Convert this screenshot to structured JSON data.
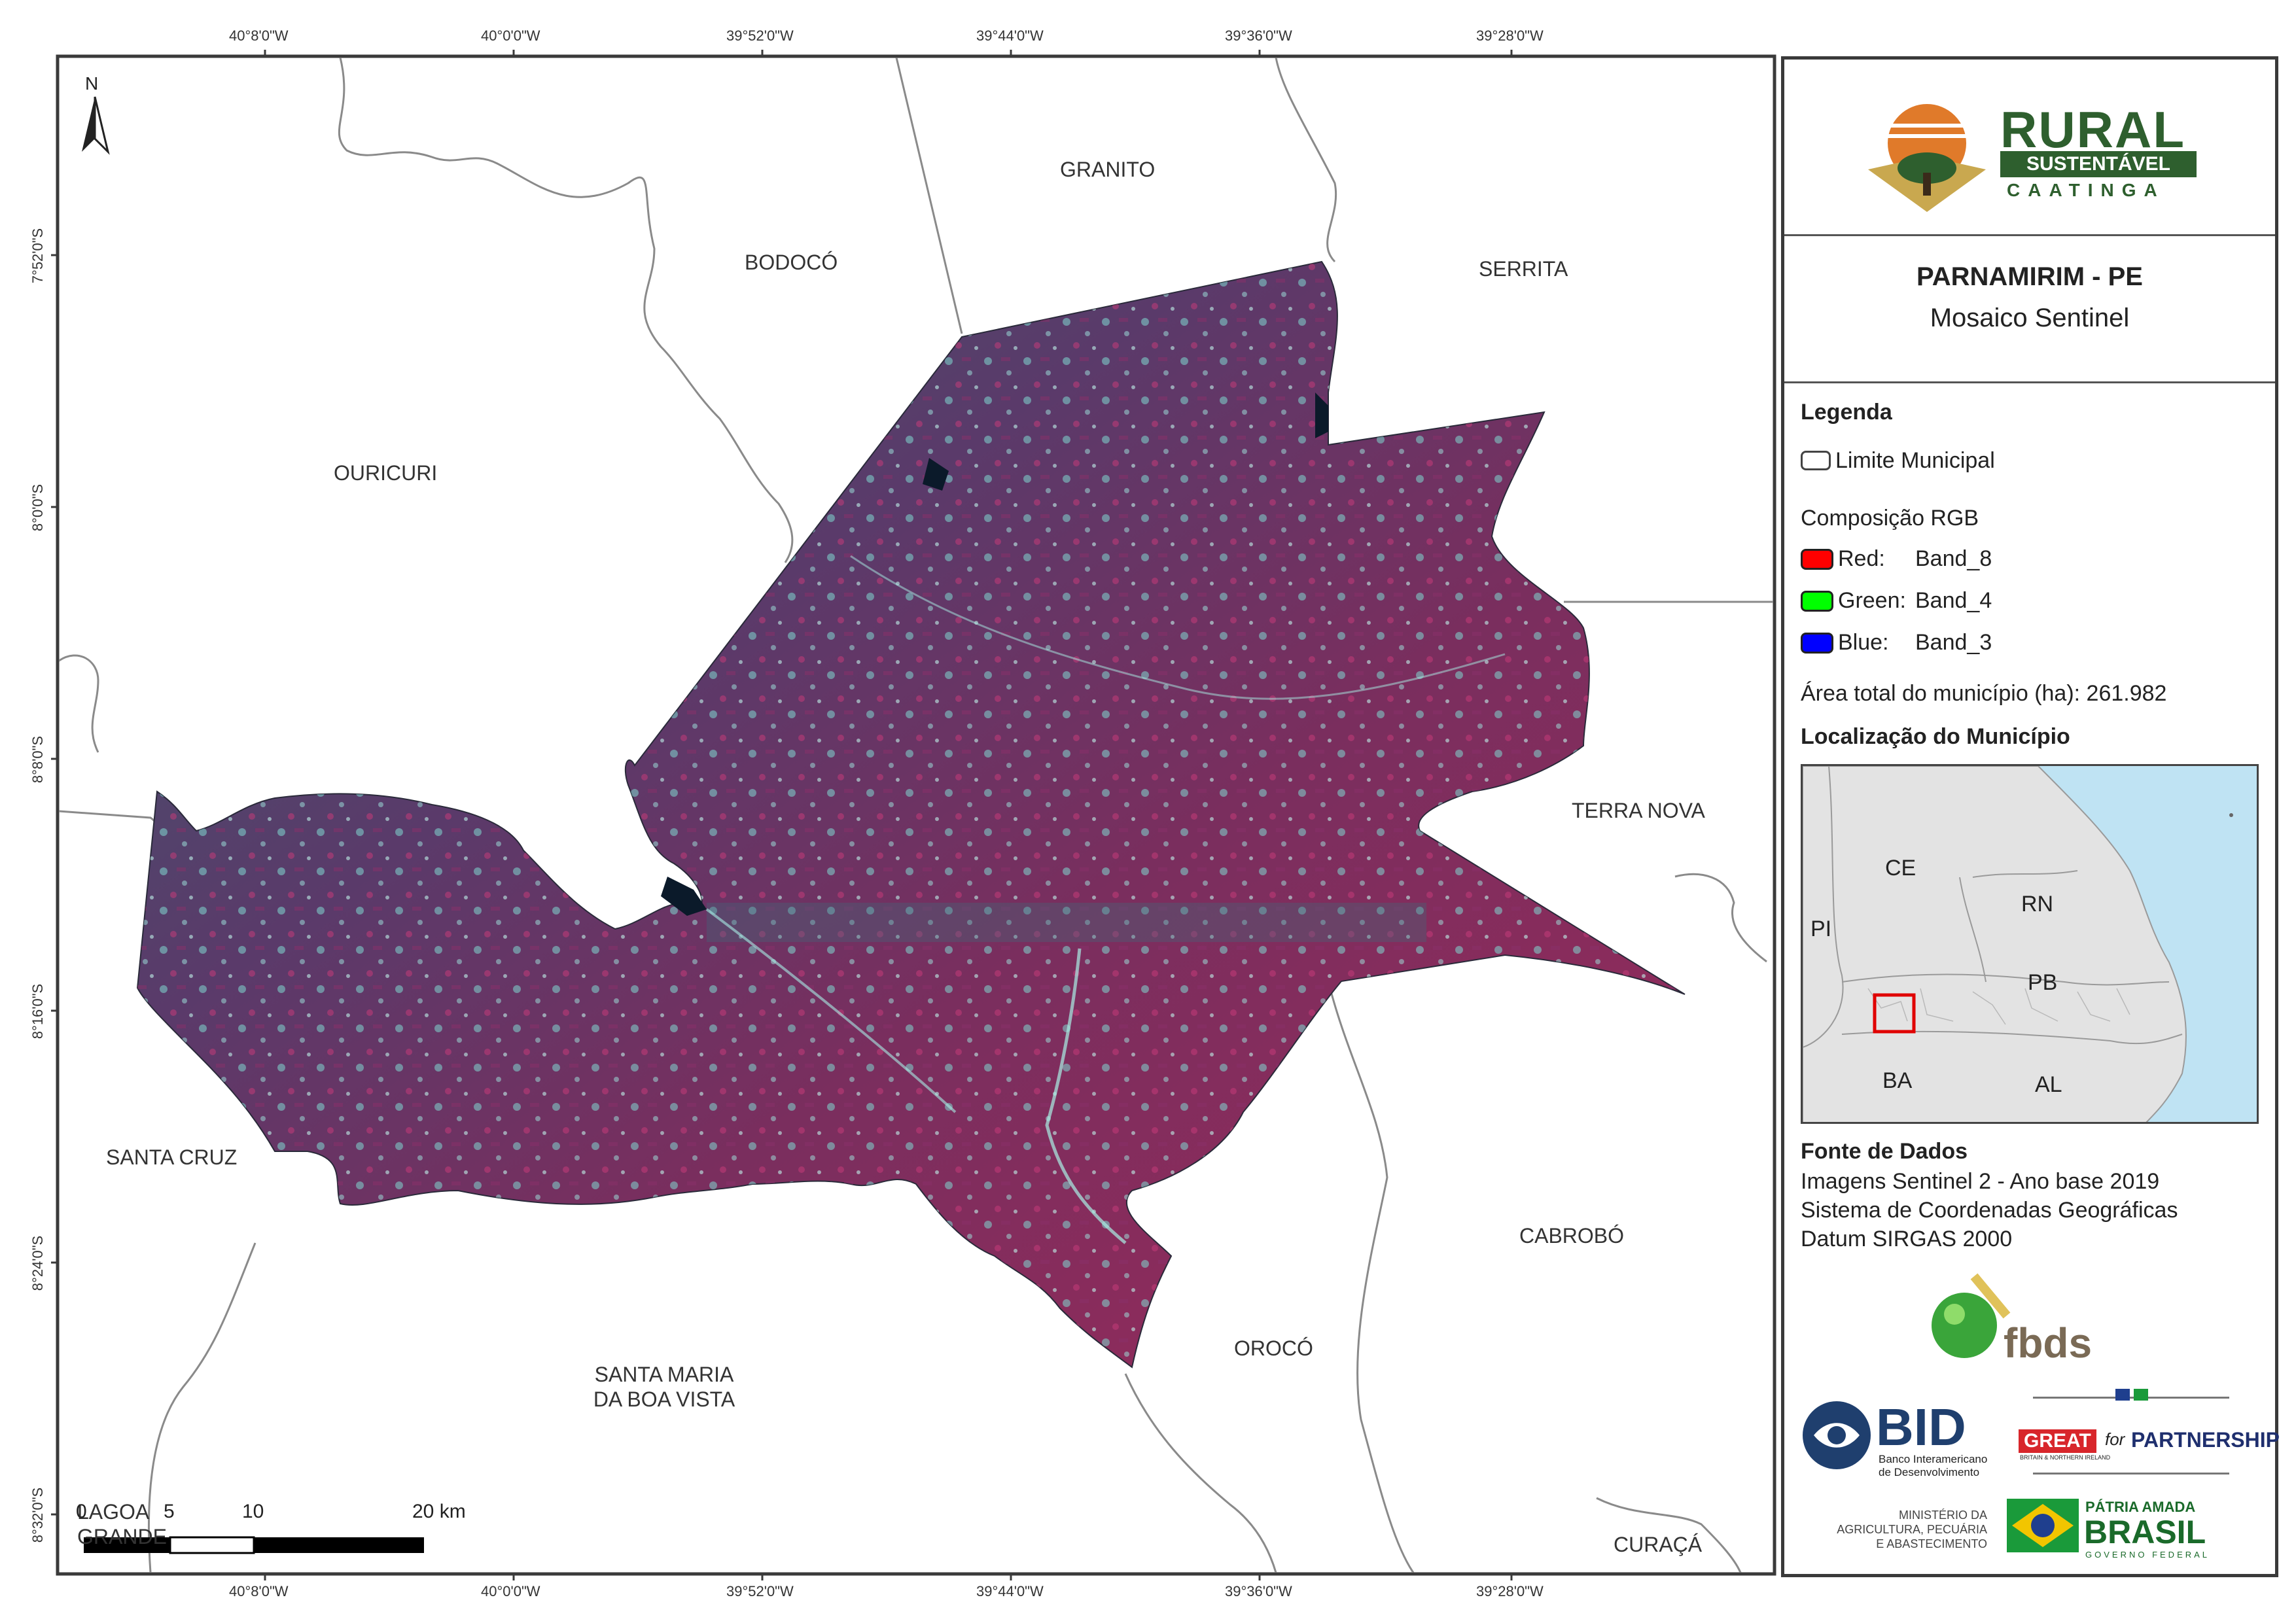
{
  "map": {
    "grid_top": [
      "40°8'0\"W",
      "40°0'0\"W",
      "39°52'0\"W",
      "39°44'0\"W",
      "39°36'0\"W",
      "39°28'0\"W"
    ],
    "grid_bottom": [
      "40°8'0\"W",
      "40°0'0\"W",
      "39°52'0\"W",
      "39°44'0\"W",
      "39°36'0\"W",
      "39°28'0\"W"
    ],
    "grid_left": [
      "7°52'0\"S",
      "8°0'0\"S",
      "8°8'0\"S",
      "8°16'0\"S",
      "8°24'0\"S",
      "8°32'0\"S"
    ],
    "north_label": "N",
    "municipalities": {
      "granito": "GRANITO",
      "bodoco": "BODOCÓ",
      "serrita": "SERRITA",
      "ouricuri": "OURICURI",
      "terra_nova": "TERRA NOVA",
      "santa_cruz": "SANTA CRUZ",
      "cabrobo": "CABROBÓ",
      "oroco": "OROCÓ",
      "santa_maria_l1": "SANTA MARIA",
      "santa_maria_l2": "DA BOA VISTA",
      "lagoa_grande_l1": "LAGOA",
      "lagoa_grande_l2": "GRANDE",
      "curaca": "CURAÇÁ"
    },
    "scale": {
      "t0": "0",
      "t1": "5",
      "t2": "10",
      "t3": "20 km"
    },
    "colors": {
      "border": "#3a3a3a",
      "muni_line": "#8a8a8a",
      "imagery_base": "#4a3b6b"
    }
  },
  "panel": {
    "logo": {
      "line1": "RURAL",
      "line2": "SUSTENTÁVEL",
      "line3": "CAATINGA",
      "color": "#2e5f2e",
      "accent": "#e07a2a"
    },
    "title": "PARNAMIRIM - PE",
    "subtitle": "Mosaico Sentinel",
    "legend": {
      "heading": "Legenda",
      "limit": "Limite Municipal",
      "rgb_heading": "Composição RGB",
      "red_label": "Red:",
      "red_band": "Band_8",
      "red_color": "#ff0000",
      "green_label": "Green:",
      "green_band": "Band_4",
      "green_color": "#00ff00",
      "blue_label": "Blue:",
      "blue_band": "Band_3",
      "blue_color": "#0000ff",
      "area": "Área total do município (ha): 261.982",
      "location_heading": "Localização do Município"
    },
    "inset": {
      "ce": "CE",
      "pi": "PI",
      "rn": "RN",
      "pb": "PB",
      "ba": "BA",
      "al": "AL"
    },
    "sources": {
      "heading": "Fonte de Dados",
      "line1": "Imagens Sentinel 2 - Ano base 2019",
      "line2": "Sistema de Coordenadas Geográficas",
      "line3": "Datum SIRGAS 2000"
    },
    "partners": {
      "fbds": "fbds",
      "bid": "BID",
      "bid_sub1": "Banco Interamericano",
      "bid_sub2": "de Desenvolvimento",
      "great": "GREAT",
      "for": "for",
      "partnership": "PARTNERSHIP",
      "great_sub": "BRITAIN & NORTHERN IRELAND",
      "ministry1": "MINISTÉRIO DA",
      "ministry2": "AGRICULTURA, PECUÁRIA",
      "ministry3": "E ABASTECIMENTO",
      "patria": "PÁTRIA AMADA",
      "brasil": "BRASIL",
      "governo": "GOVERNO FEDERAL"
    }
  }
}
